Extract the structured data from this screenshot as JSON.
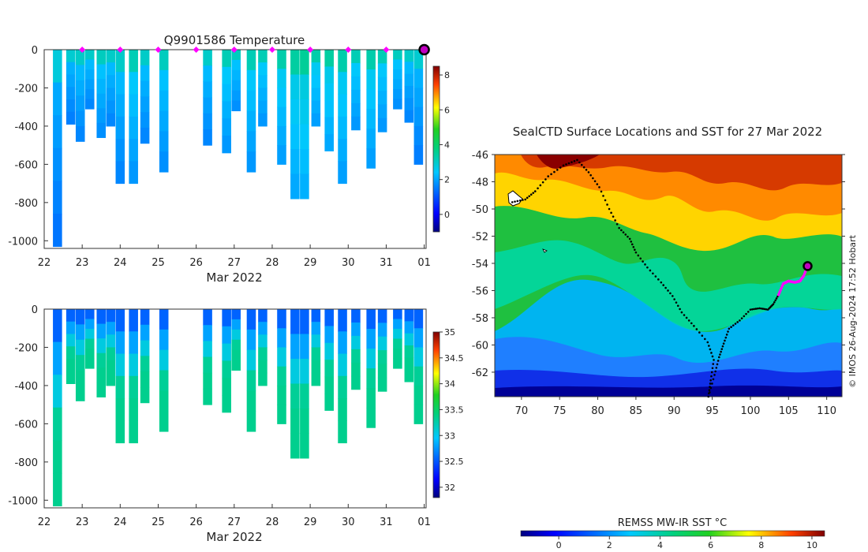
{
  "chart_data": [
    {
      "type": "heatmap",
      "title": "Q9901586  Temperature",
      "xlabel": "Mar 2022",
      "ylabel": "",
      "xticks": [
        "22",
        "23",
        "24",
        "25",
        "26",
        "27",
        "28",
        "29",
        "30",
        "31",
        "01"
      ],
      "yticks": [
        "0",
        "-200",
        "-400",
        "-600",
        "-800",
        "-1000"
      ],
      "ylim": [
        -1040,
        0
      ],
      "xlim": [
        22,
        32.05
      ],
      "colorbar": {
        "min": -1,
        "max": 8.5,
        "ticks": [
          "0",
          "2",
          "4",
          "6",
          "8"
        ]
      },
      "surface_markers_days": [
        23,
        24,
        25,
        26,
        27,
        28,
        29,
        30,
        31
      ],
      "current_position_day": 32,
      "profiles": [
        {
          "day": 22.35,
          "max_depth": 1030,
          "deep_value": 2.2
        },
        {
          "day": 22.7,
          "max_depth": 390,
          "deep_value": 2.3
        },
        {
          "day": 22.95,
          "max_depth": 480,
          "deep_value": 2.4
        },
        {
          "day": 23.2,
          "max_depth": 310,
          "deep_value": 2.4
        },
        {
          "day": 23.5,
          "max_depth": 460,
          "deep_value": 2.5
        },
        {
          "day": 23.75,
          "max_depth": 400,
          "deep_value": 2.4
        },
        {
          "day": 24.0,
          "max_depth": 700,
          "deep_value": 2.4
        },
        {
          "day": 24.35,
          "max_depth": 700,
          "deep_value": 2.6
        },
        {
          "day": 24.65,
          "max_depth": 490,
          "deep_value": 2.4
        },
        {
          "day": 25.15,
          "max_depth": 640,
          "deep_value": 2.5
        },
        {
          "day": 26.3,
          "max_depth": 500,
          "deep_value": 2.4
        },
        {
          "day": 26.8,
          "max_depth": 540,
          "deep_value": 2.6
        },
        {
          "day": 27.05,
          "max_depth": 320,
          "deep_value": 2.5
        },
        {
          "day": 27.45,
          "max_depth": 640,
          "deep_value": 2.6
        },
        {
          "day": 27.75,
          "max_depth": 400,
          "deep_value": 2.6
        },
        {
          "day": 28.25,
          "max_depth": 600,
          "deep_value": 2.7
        },
        {
          "day": 28.6,
          "max_depth": 780,
          "deep_value": 2.8
        },
        {
          "day": 28.85,
          "max_depth": 780,
          "deep_value": 2.9
        },
        {
          "day": 29.15,
          "max_depth": 400,
          "deep_value": 2.7
        },
        {
          "day": 29.5,
          "max_depth": 530,
          "deep_value": 2.8
        },
        {
          "day": 29.85,
          "max_depth": 700,
          "deep_value": 2.7
        },
        {
          "day": 30.2,
          "max_depth": 420,
          "deep_value": 2.6
        },
        {
          "day": 30.6,
          "max_depth": 620,
          "deep_value": 2.7
        },
        {
          "day": 30.9,
          "max_depth": 430,
          "deep_value": 2.6
        },
        {
          "day": 31.3,
          "max_depth": 310,
          "deep_value": 2.5
        },
        {
          "day": 31.6,
          "max_depth": 380,
          "deep_value": 2.4
        },
        {
          "day": 31.85,
          "max_depth": 600,
          "deep_value": 2.3
        }
      ]
    },
    {
      "type": "heatmap",
      "title": "",
      "xlabel": "Mar 2022",
      "ylabel": "",
      "xticks": [
        "22",
        "23",
        "24",
        "25",
        "26",
        "27",
        "28",
        "29",
        "30",
        "31",
        "01"
      ],
      "yticks": [
        "0",
        "-200",
        "-400",
        "-600",
        "-800",
        "-1000"
      ],
      "ylim": [
        -1040,
        0
      ],
      "xlim": [
        22,
        32.05
      ],
      "colorbar": {
        "min": 31.8,
        "max": 35,
        "ticks": [
          "32",
          "32.5",
          "33",
          "33.5",
          "34",
          "34.5",
          "35"
        ]
      },
      "deep_value": 33.35,
      "surface_value": 32.55
    },
    {
      "type": "map",
      "title": "SealCTD Surface Locations and SST for 27 Mar 2022",
      "xticks": [
        "70",
        "75",
        "80",
        "85",
        "90",
        "95",
        "100",
        "105",
        "110"
      ],
      "yticks": [
        "-46",
        "-48",
        "-50",
        "-52",
        "-54",
        "-56",
        "-58",
        "-60",
        "-62"
      ],
      "xlim": [
        66.5,
        112
      ],
      "ylim": [
        -63.8,
        -46
      ],
      "colorbar": {
        "label": "REMSS MW-IR SST °C",
        "min": -1.5,
        "max": 10.5,
        "ticks": [
          "0",
          "2",
          "4",
          "6",
          "8",
          "10"
        ]
      },
      "credit": "© IMOS 26-Aug-2024 17:52 Hobart",
      "track": [
        [
          68.8,
          -49.5
        ],
        [
          70.5,
          -49.3
        ],
        [
          71.8,
          -48.7
        ],
        [
          73.5,
          -47.6
        ],
        [
          75.5,
          -46.8
        ],
        [
          77.3,
          -46.4
        ],
        [
          78.8,
          -47.3
        ],
        [
          80.2,
          -48.4
        ],
        [
          81.5,
          -50.0
        ],
        [
          82.8,
          -51.4
        ],
        [
          84.2,
          -52.2
        ],
        [
          85.0,
          -53.2
        ],
        [
          86.5,
          -54.3
        ],
        [
          88.3,
          -55.4
        ],
        [
          89.8,
          -56.4
        ],
        [
          91.0,
          -57.6
        ],
        [
          92.6,
          -58.6
        ],
        [
          94.4,
          -59.8
        ],
        [
          95.2,
          -61.1
        ],
        [
          94.8,
          -62.6
        ],
        [
          94.5,
          -63.8
        ],
        [
          95.3,
          -62.2
        ],
        [
          95.9,
          -60.9
        ],
        [
          96.5,
          -59.9
        ],
        [
          97.2,
          -58.8
        ],
        [
          98.6,
          -58.2
        ],
        [
          100.0,
          -57.4
        ],
        [
          101.2,
          -57.3
        ],
        [
          102.3,
          -57.4
        ],
        [
          103.0,
          -57.0
        ],
        [
          103.7,
          -56.3
        ]
      ],
      "recent_track": [
        [
          103.7,
          -56.3
        ],
        [
          104.3,
          -55.5
        ],
        [
          105.0,
          -55.3
        ],
        [
          105.8,
          -55.4
        ],
        [
          106.5,
          -55.3
        ],
        [
          107.0,
          -54.9
        ],
        [
          107.5,
          -54.2
        ]
      ],
      "current_position": [
        107.5,
        -54.2
      ]
    }
  ]
}
